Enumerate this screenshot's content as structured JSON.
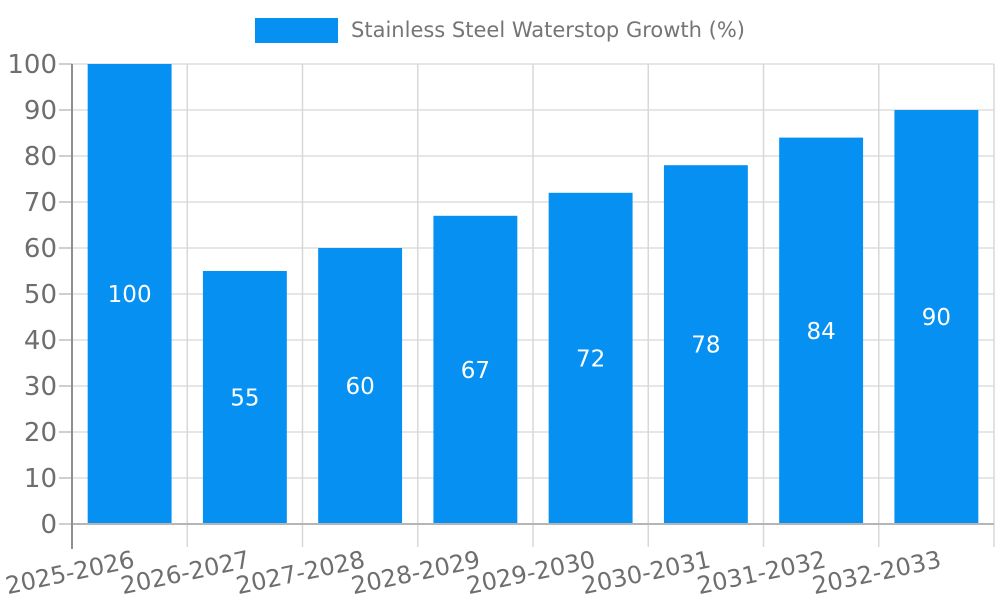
{
  "chart_data": {
    "type": "bar",
    "title": "Stainless Steel Waterstop Growth (%)",
    "categories": [
      "2025-2026",
      "2026-2027",
      "2027-2028",
      "2028-2029",
      "2029-2030",
      "2030-2031",
      "2031-2032",
      "2032-2033"
    ],
    "values": [
      100,
      55,
      60,
      67,
      72,
      78,
      84,
      90
    ],
    "series": [
      {
        "name": "Stainless Steel Waterstop Growth (%)",
        "values": [
          100,
          55,
          60,
          67,
          72,
          78,
          84,
          90
        ]
      }
    ],
    "xlabel": "",
    "ylabel": "",
    "ylim": [
      0,
      100
    ],
    "yticks": [
      0,
      10,
      20,
      30,
      40,
      50,
      60,
      70,
      80,
      90,
      100
    ],
    "grid": true,
    "legend_position": "top-center",
    "bar_labels_visible": true,
    "x_label_rotation_deg": -12,
    "colors": {
      "bar": "#0590F2",
      "bar_value_label": "#FFFFFF",
      "axis_tick_text": "#6E6E6E",
      "legend_text": "#757575",
      "h_gridline": "#E6E6E6",
      "v_gridline": "#D8D8D8",
      "y_tick_mark": "#CFCFCF",
      "x_axis_line": "#B5B5B5",
      "y_axis_line": "#8F8F8F"
    }
  }
}
